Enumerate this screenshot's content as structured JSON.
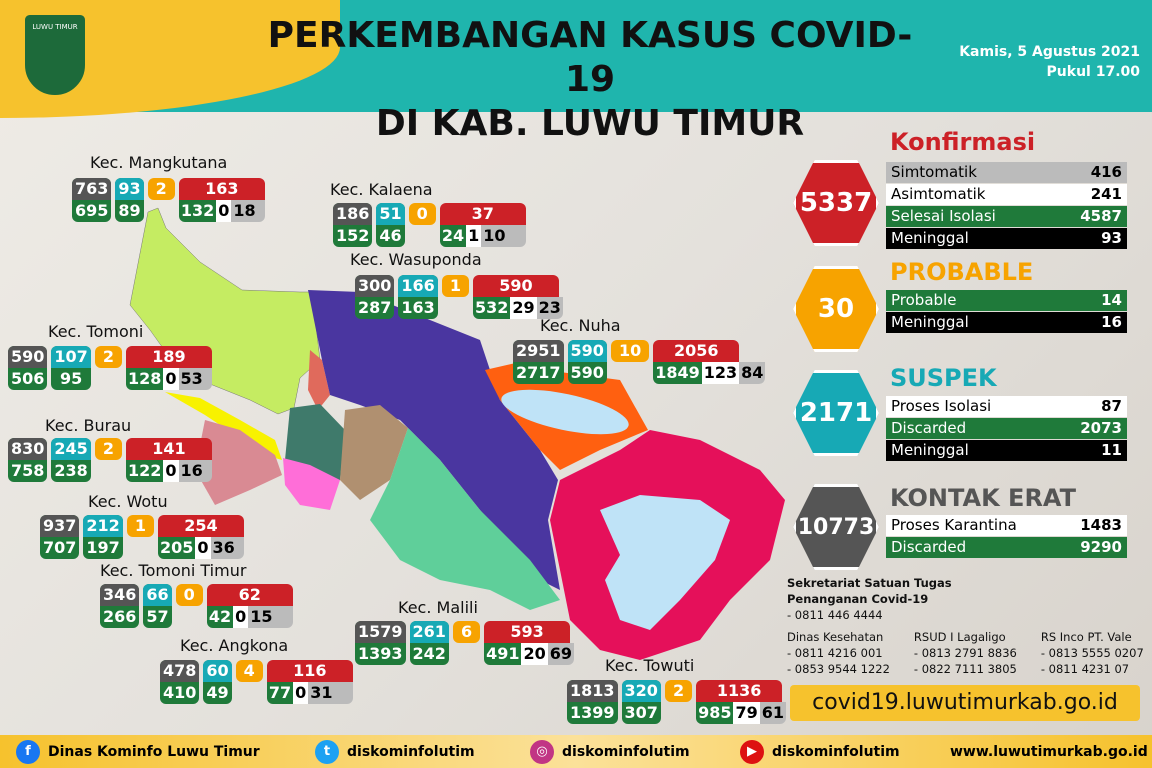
{
  "header": {
    "title_line1": "PERKEMBANGAN KASUS COVID-19",
    "title_line2": "DI KAB. LUWU TIMUR",
    "date": "Kamis, 5 Agustus 2021",
    "time": "Pukul 17.00",
    "logo_text": "LUWU TIMUR"
  },
  "colors": {
    "teal": "#1fb5ad",
    "yellow": "#f6c22d",
    "red": "#cc2127",
    "orange": "#f7a300",
    "green": "#1f7a3a",
    "gray": "#555555"
  },
  "districts": [
    {
      "name": "Kec. Mangkutana",
      "total": "763",
      "total_bottom": "695",
      "b": "93",
      "b_bottom": "89",
      "probable": "2",
      "red": "163",
      "red_green": "132",
      "red_white": "0",
      "red_gray": "18"
    },
    {
      "name": "Kec. Kalaena",
      "total": "186",
      "total_bottom": "152",
      "b": "51",
      "b_bottom": "46",
      "probable": "0",
      "red": "37",
      "red_green": "24",
      "red_white": "1",
      "red_gray": "10"
    },
    {
      "name": "Kec. Wasuponda",
      "total": "300",
      "total_bottom": "287",
      "b": "166",
      "b_bottom": "163",
      "probable": "1",
      "red": "590",
      "red_green": "532",
      "red_white": "29",
      "red_gray": "23"
    },
    {
      "name": "Kec. Nuha",
      "total": "2951",
      "total_bottom": "2717",
      "b": "590",
      "b_bottom": "590",
      "probable": "10",
      "red": "2056",
      "red_green": "1849",
      "red_white": "123",
      "red_gray": "84"
    },
    {
      "name": "Kec. Tomoni",
      "total": "590",
      "total_bottom": "506",
      "b": "107",
      "b_bottom": "95",
      "probable": "2",
      "red": "189",
      "red_green": "128",
      "red_white": "0",
      "red_gray": "53"
    },
    {
      "name": "Kec. Burau",
      "total": "830",
      "total_bottom": "758",
      "b": "245",
      "b_bottom": "238",
      "probable": "2",
      "red": "141",
      "red_green": "122",
      "red_white": "0",
      "red_gray": "16"
    },
    {
      "name": "Kec. Wotu",
      "total": "937",
      "total_bottom": "707",
      "b": "212",
      "b_bottom": "197",
      "probable": "1",
      "red": "254",
      "red_green": "205",
      "red_white": "0",
      "red_gray": "36"
    },
    {
      "name": "Kec. Tomoni Timur",
      "total": "346",
      "total_bottom": "266",
      "b": "66",
      "b_bottom": "57",
      "probable": "0",
      "red": "62",
      "red_green": "42",
      "red_white": "0",
      "red_gray": "15"
    },
    {
      "name": "Kec. Angkona",
      "total": "478",
      "total_bottom": "410",
      "b": "60",
      "b_bottom": "49",
      "probable": "4",
      "red": "116",
      "red_green": "77",
      "red_white": "0",
      "red_gray": "31"
    },
    {
      "name": "Kec. Malili",
      "total": "1579",
      "total_bottom": "1393",
      "b": "261",
      "b_bottom": "242",
      "probable": "6",
      "red": "593",
      "red_green": "491",
      "red_white": "20",
      "red_gray": "69"
    },
    {
      "name": "Kec. Towuti",
      "total": "1813",
      "total_bottom": "1399",
      "b": "320",
      "b_bottom": "307",
      "probable": "2",
      "red": "1136",
      "red_green": "985",
      "red_white": "79",
      "red_gray": "61"
    }
  ],
  "summary": {
    "konfirmasi": {
      "title": "Konfirmasi",
      "total": "5337",
      "rows": [
        {
          "label": "Simtomatik",
          "value": "416"
        },
        {
          "label": "Asimtomatik",
          "value": "241"
        },
        {
          "label": "Selesai Isolasi",
          "value": "4587"
        },
        {
          "label": "Meninggal",
          "value": "93"
        }
      ]
    },
    "probable": {
      "title": "PROBABLE",
      "total": "30",
      "rows": [
        {
          "label": "Probable",
          "value": "14"
        },
        {
          "label": "Meninggal",
          "value": "16"
        }
      ]
    },
    "suspek": {
      "title": "SUSPEK",
      "total": "2171",
      "rows": [
        {
          "label": "Proses Isolasi",
          "value": "87"
        },
        {
          "label": "Discarded",
          "value": "2073"
        },
        {
          "label": "Meninggal",
          "value": "11"
        }
      ]
    },
    "kontak": {
      "title": "KONTAK ERAT",
      "total": "10773",
      "rows": [
        {
          "label": "Proses Karantina",
          "value": "1483"
        },
        {
          "label": "Discarded",
          "value": "9290"
        }
      ]
    }
  },
  "contacts": {
    "sekretariat_1": "Sekretariat Satuan Tugas",
    "sekretariat_2": "Penanganan Covid-19",
    "sekretariat_phone": "- 0811 446 4444",
    "cols": [
      {
        "name": "Dinas Kesehatan",
        "p1": "- 0811 4216 001",
        "p2": "- 0853 9544 1222"
      },
      {
        "name": "RSUD I Lagaligo",
        "p1": "- 0813 2791 8836",
        "p2": "- 0822 7111 3805"
      },
      {
        "name": "RS Inco PT. Vale",
        "p1": "- 0813 5555 0207",
        "p2": "- 0811 4231 07"
      }
    ]
  },
  "website_banner": "covid19.luwutimurkab.go.id",
  "footer": {
    "facebook": "Dinas Kominfo Luwu Timur",
    "twitter": "diskominfolutim",
    "instagram": "diskominfolutim",
    "youtube": "diskominfolutim",
    "website": "www.luwutimurkab.go.id"
  }
}
